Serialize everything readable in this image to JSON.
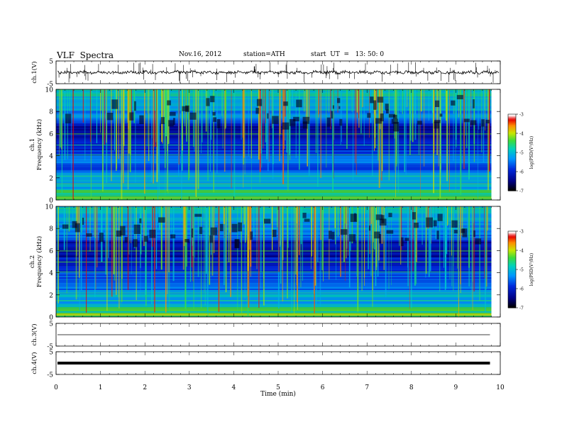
{
  "header": {
    "title": "VLF  Spectra",
    "date": "Nov.16, 2012",
    "station": "station=ATH",
    "start": "start  UT  =   13: 50: 0"
  },
  "chart_data": [
    {
      "type": "line",
      "panel": "ch1-waveform",
      "ylabel": "ch.1(V)",
      "yticks": [
        "5",
        "-5"
      ],
      "ylim": [
        -5,
        5
      ],
      "xlim": [
        0,
        10
      ]
    },
    {
      "type": "heatmap",
      "panel": "ch1-spectrogram",
      "ylabel_lines": [
        "ch.1",
        "Frequency  (kHz)"
      ],
      "yticks": [
        "0",
        "2",
        "4",
        "6",
        "8",
        "10"
      ],
      "ylim": [
        0,
        10
      ],
      "xlim": [
        0,
        9.8
      ],
      "colorbar": {
        "label": "log(PSD(V²/Hz)",
        "ticks": [
          "-3",
          "-4",
          "-5",
          "-6",
          "-7"
        ],
        "range": [
          -7,
          -3
        ]
      }
    },
    {
      "type": "heatmap",
      "panel": "ch2-spectrogram",
      "ylabel_lines": [
        "ch.2",
        "Frequency  (kHz)"
      ],
      "yticks": [
        "0",
        "2",
        "4",
        "6",
        "8",
        "10"
      ],
      "ylim": [
        0,
        10
      ],
      "xlim": [
        0,
        9.8
      ],
      "colorbar": {
        "label": "log(PSD(V²/Hz)",
        "ticks": [
          "-3",
          "-4",
          "-5",
          "-6",
          "-7"
        ],
        "range": [
          -7,
          -3
        ]
      }
    },
    {
      "type": "line",
      "panel": "ch3-waveform",
      "ylabel": "ch.3(V)",
      "yticks": [
        "5",
        "-5"
      ],
      "ylim": [
        -5,
        5
      ]
    },
    {
      "type": "line",
      "panel": "ch4-waveform",
      "ylabel": "ch.4(V)",
      "yticks": [
        "5",
        "-5"
      ],
      "ylim": [
        -5,
        5
      ]
    }
  ],
  "xaxis": {
    "label": "Time  (min)",
    "ticks": [
      "0",
      "1",
      "2",
      "3",
      "4",
      "5",
      "6",
      "7",
      "8",
      "9",
      "10"
    ],
    "range": [
      0,
      10
    ]
  }
}
